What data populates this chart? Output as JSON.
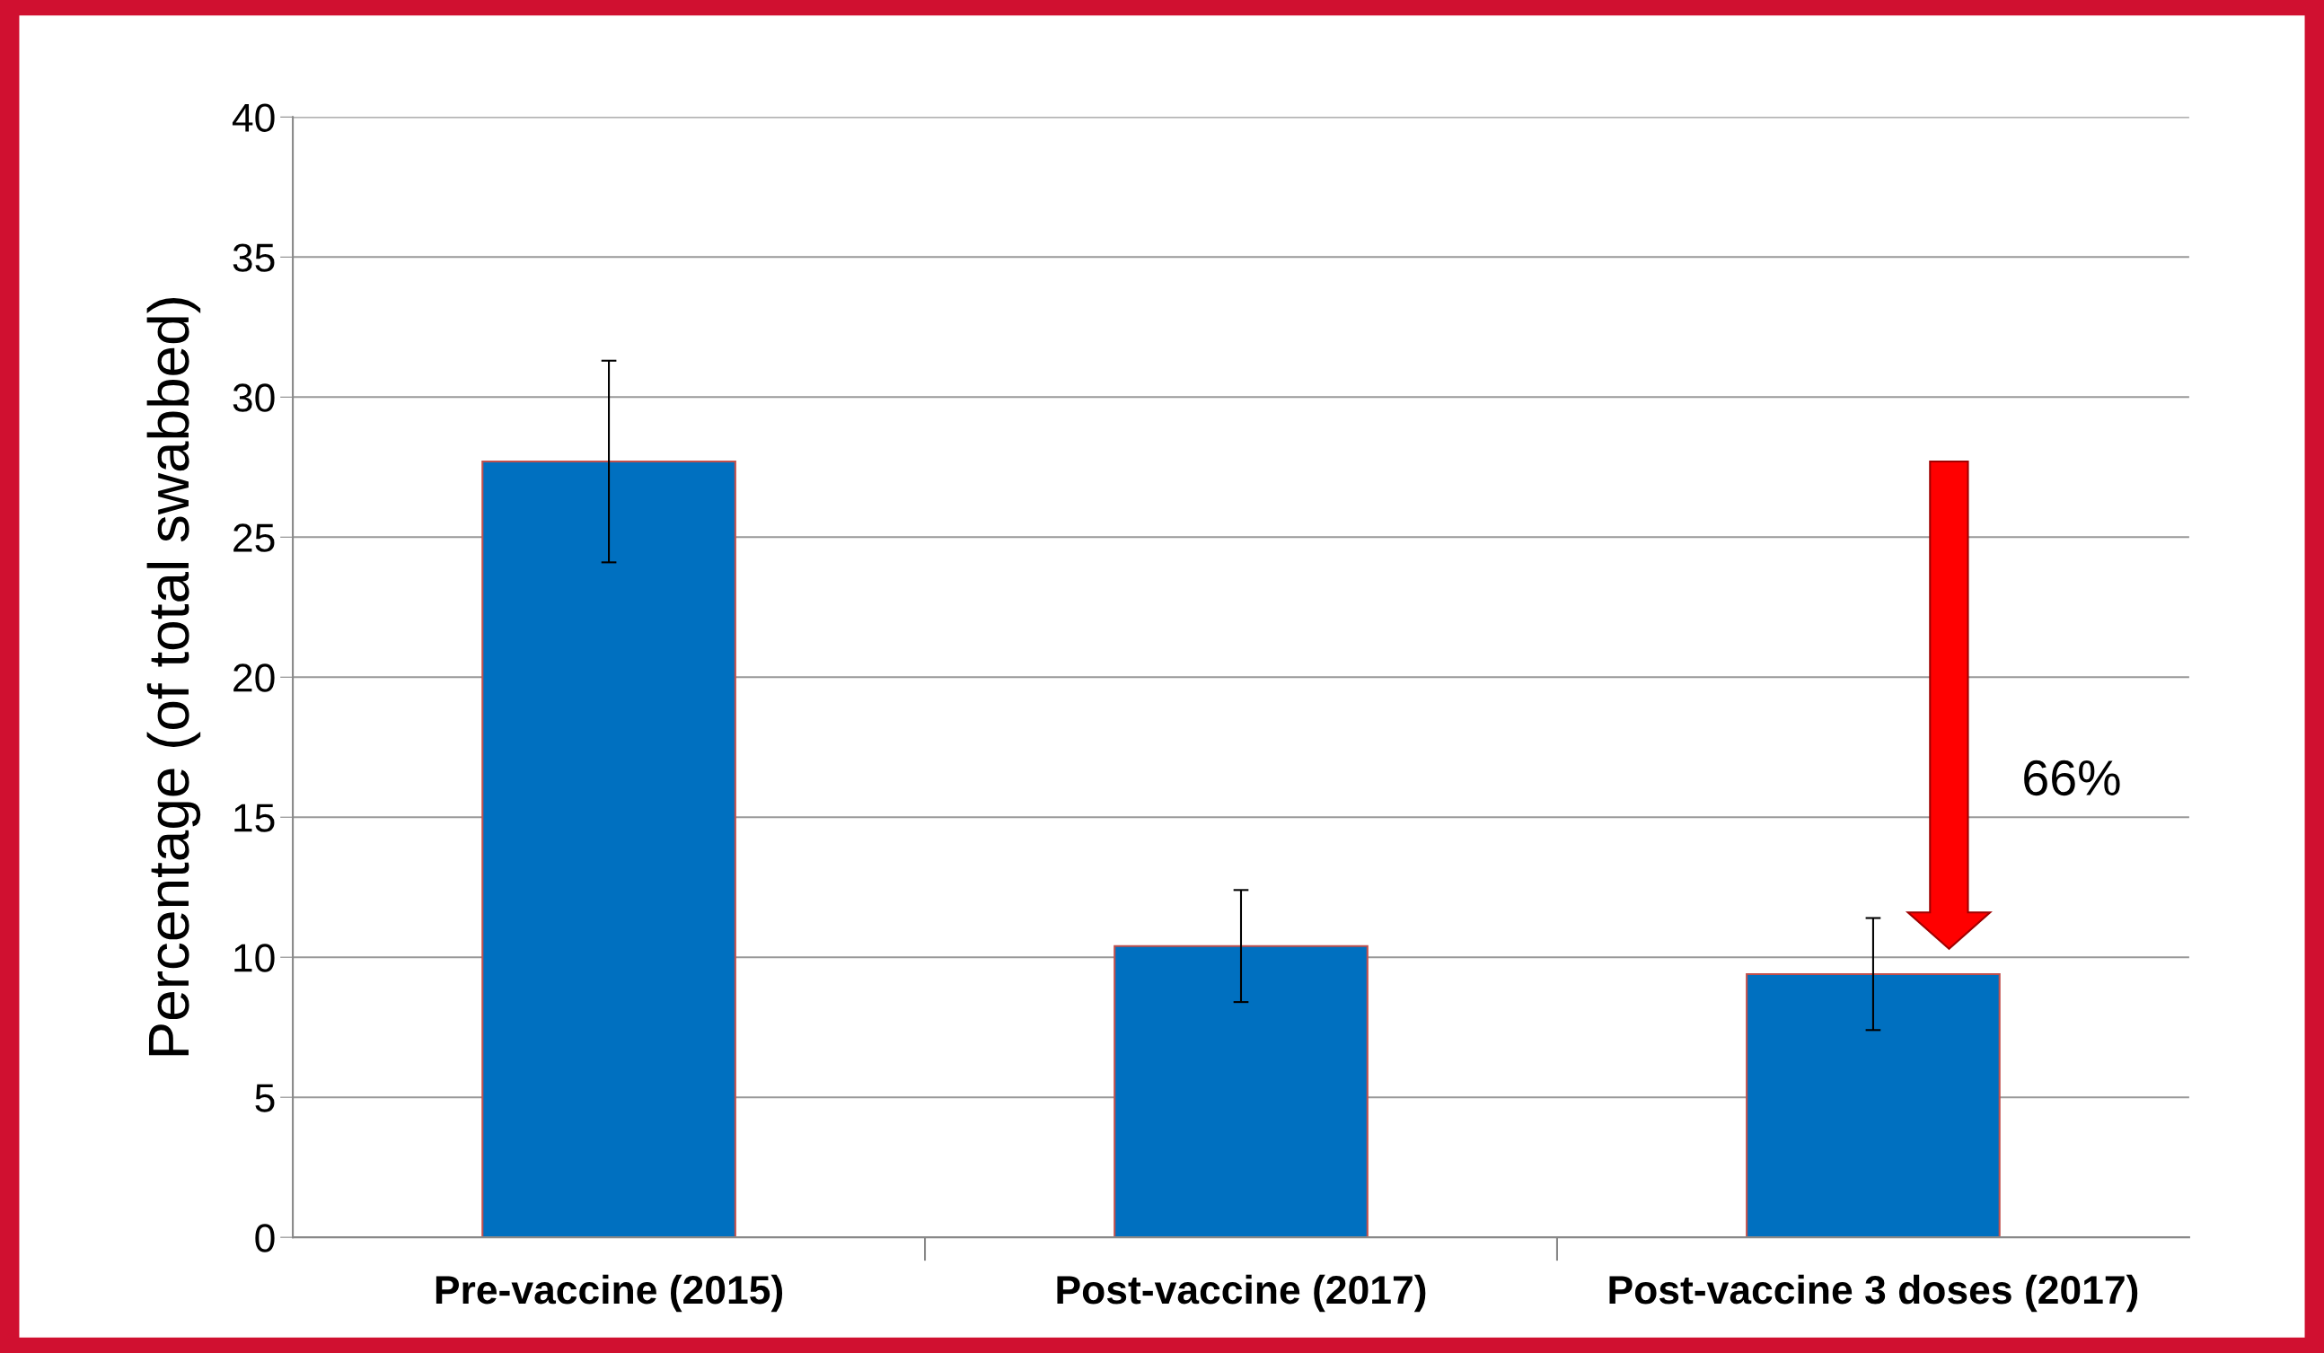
{
  "chart_data": {
    "type": "bar",
    "categories": [
      "Pre-vaccine (2015)",
      "Post-vaccine (2017)",
      "Post-vaccine 3 doses (2017)"
    ],
    "values": [
      27.7,
      10.4,
      9.4
    ],
    "errors": [
      3.6,
      2.0,
      2.0
    ],
    "color": "#0070c0",
    "ylabel": "Percentage (of total swabbed)",
    "ylim": [
      0,
      40
    ],
    "yticks": [
      0,
      5,
      10,
      15,
      20,
      25,
      30,
      35,
      40
    ],
    "grid": "y",
    "annotations": [
      "66%"
    ]
  }
}
